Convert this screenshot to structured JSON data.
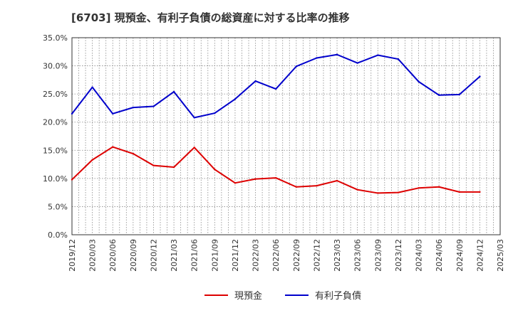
{
  "chart_data": {
    "type": "line",
    "title": "[6703]  現預金、有利子負債の総資産に対する比率の推移",
    "xlabel": "",
    "ylabel": "",
    "ylim": [
      0,
      35
    ],
    "y_ticks": [
      "0.0%",
      "5.0%",
      "10.0%",
      "15.0%",
      "20.0%",
      "25.0%",
      "30.0%",
      "35.0%"
    ],
    "categories": [
      "2019/12",
      "2020/03",
      "2020/06",
      "2020/09",
      "2020/12",
      "2021/03",
      "2021/06",
      "2021/09",
      "2021/12",
      "2022/03",
      "2022/06",
      "2022/09",
      "2022/12",
      "2023/03",
      "2023/06",
      "2023/09",
      "2023/12",
      "2024/03",
      "2024/06",
      "2024/09",
      "2024/12",
      "2025/03"
    ],
    "series": [
      {
        "name": "現預金",
        "color": "#dd0000",
        "values": [
          9.8,
          13.3,
          15.6,
          14.4,
          12.3,
          12.0,
          15.5,
          11.6,
          9.2,
          9.9,
          10.1,
          8.5,
          8.7,
          9.6,
          8.0,
          7.4,
          7.5,
          8.3,
          8.5,
          7.6,
          7.6,
          null
        ]
      },
      {
        "name": "有利子負債",
        "color": "#0000cc",
        "values": [
          21.5,
          26.2,
          21.5,
          22.6,
          22.8,
          25.4,
          20.8,
          21.6,
          24.1,
          27.3,
          25.9,
          29.9,
          31.4,
          32.0,
          30.5,
          31.9,
          31.2,
          27.2,
          24.8,
          24.9,
          28.1,
          null
        ]
      }
    ],
    "grid": true,
    "legend_position": "bottom-center"
  }
}
